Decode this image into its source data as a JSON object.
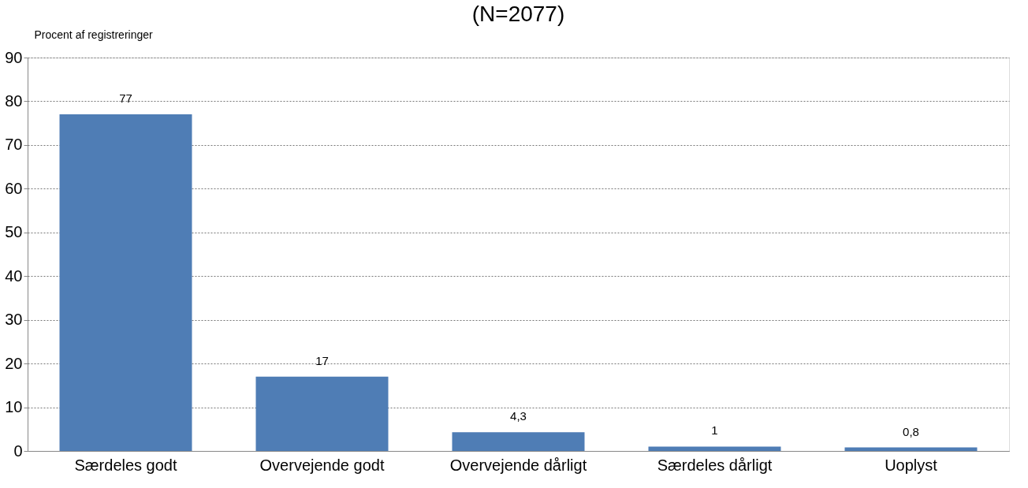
{
  "chart_data": {
    "type": "bar",
    "title": "(N=2077)",
    "ylabel": "Procent af registreringer",
    "categories": [
      "Særdeles godt",
      "Overvejende godt",
      "Overvejende dårligt",
      "Særdeles dårligt",
      "Uoplyst"
    ],
    "values": [
      77,
      17,
      4.3,
      1,
      0.8
    ],
    "value_labels": [
      "77",
      "17",
      "4,3",
      "1",
      "0,8"
    ],
    "color": "#4f7db5",
    "ylim": [
      0,
      90
    ],
    "yticks": [
      0,
      10,
      20,
      30,
      40,
      50,
      60,
      70,
      80,
      90
    ],
    "grid": "y"
  }
}
